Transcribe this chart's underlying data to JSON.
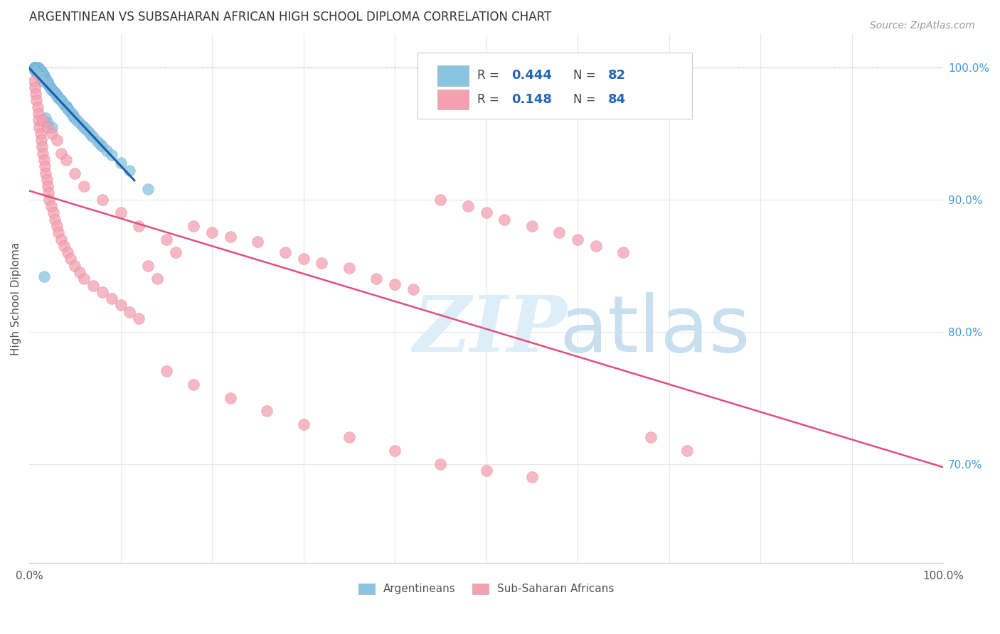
{
  "title": "ARGENTINEAN VS SUBSAHARAN AFRICAN HIGH SCHOOL DIPLOMA CORRELATION CHART",
  "source": "Source: ZipAtlas.com",
  "ylabel": "High School Diploma",
  "legend_label_blue": "Argentineans",
  "legend_label_pink": "Sub-Saharan Africans",
  "xlim": [
    0,
    1.0
  ],
  "ylim": [
    0.625,
    1.025
  ],
  "blue_color": "#89c4e1",
  "blue_edge_color": "#5a9fd4",
  "pink_color": "#f4a0b0",
  "pink_edge_color": "#e06080",
  "blue_line_color": "#1a5fa8",
  "pink_line_color": "#e0507a",
  "title_color": "#333333",
  "source_color": "#999999",
  "right_tick_color": "#4499dd",
  "grid_color": "#e8e8e8",
  "legend_r_blue": "0.444",
  "legend_n_blue": "82",
  "legend_r_pink": "0.148",
  "legend_n_pink": "84",
  "blue_x": [
    0.005,
    0.006,
    0.007,
    0.007,
    0.008,
    0.008,
    0.008,
    0.009,
    0.009,
    0.01,
    0.01,
    0.01,
    0.01,
    0.011,
    0.011,
    0.012,
    0.012,
    0.013,
    0.013,
    0.014,
    0.014,
    0.015,
    0.015,
    0.016,
    0.016,
    0.017,
    0.018,
    0.018,
    0.019,
    0.02,
    0.02,
    0.021,
    0.022,
    0.023,
    0.024,
    0.025,
    0.026,
    0.028,
    0.029,
    0.03,
    0.031,
    0.032,
    0.034,
    0.035,
    0.036,
    0.038,
    0.04,
    0.041,
    0.042,
    0.043,
    0.045,
    0.047,
    0.048,
    0.05,
    0.052,
    0.055,
    0.058,
    0.06,
    0.062,
    0.065,
    0.068,
    0.07,
    0.075,
    0.078,
    0.08,
    0.085,
    0.09,
    0.1,
    0.11,
    0.13,
    0.005,
    0.006,
    0.007,
    0.008,
    0.009,
    0.01,
    0.012,
    0.014,
    0.016,
    0.018,
    0.02,
    0.025
  ],
  "blue_y": [
    1.0,
    1.0,
    1.0,
    0.999,
    1.0,
    0.999,
    0.998,
    1.0,
    0.999,
    1.0,
    0.999,
    0.998,
    0.997,
    0.999,
    0.997,
    0.998,
    0.996,
    0.997,
    0.995,
    0.996,
    0.994,
    0.995,
    0.993,
    0.994,
    0.992,
    0.993,
    0.991,
    0.99,
    0.99,
    0.989,
    0.988,
    0.987,
    0.986,
    0.985,
    0.984,
    0.983,
    0.982,
    0.981,
    0.98,
    0.979,
    0.978,
    0.977,
    0.976,
    0.975,
    0.974,
    0.972,
    0.971,
    0.97,
    0.969,
    0.968,
    0.966,
    0.965,
    0.963,
    0.962,
    0.96,
    0.958,
    0.956,
    0.955,
    0.953,
    0.951,
    0.949,
    0.947,
    0.944,
    0.942,
    0.94,
    0.937,
    0.934,
    0.928,
    0.922,
    0.908,
    0.999,
    0.998,
    0.997,
    0.996,
    0.995,
    0.994,
    0.993,
    0.99,
    0.842,
    0.962,
    0.958,
    0.955
  ],
  "pink_x": [
    0.005,
    0.006,
    0.007,
    0.008,
    0.009,
    0.01,
    0.01,
    0.011,
    0.012,
    0.013,
    0.014,
    0.015,
    0.016,
    0.017,
    0.018,
    0.019,
    0.02,
    0.021,
    0.022,
    0.024,
    0.026,
    0.028,
    0.03,
    0.032,
    0.035,
    0.038,
    0.042,
    0.045,
    0.05,
    0.055,
    0.06,
    0.07,
    0.08,
    0.09,
    0.1,
    0.11,
    0.12,
    0.13,
    0.14,
    0.15,
    0.16,
    0.18,
    0.2,
    0.22,
    0.25,
    0.28,
    0.3,
    0.32,
    0.35,
    0.38,
    0.4,
    0.42,
    0.45,
    0.48,
    0.5,
    0.52,
    0.55,
    0.58,
    0.6,
    0.62,
    0.65,
    0.68,
    0.72,
    0.015,
    0.02,
    0.025,
    0.03,
    0.035,
    0.04,
    0.05,
    0.06,
    0.08,
    0.1,
    0.12,
    0.15,
    0.18,
    0.22,
    0.26,
    0.3,
    0.35,
    0.4,
    0.45,
    0.5,
    0.55
  ],
  "pink_y": [
    0.99,
    0.985,
    0.98,
    0.975,
    0.97,
    0.965,
    0.96,
    0.955,
    0.95,
    0.945,
    0.94,
    0.935,
    0.93,
    0.925,
    0.92,
    0.915,
    0.91,
    0.905,
    0.9,
    0.895,
    0.89,
    0.885,
    0.88,
    0.875,
    0.87,
    0.865,
    0.86,
    0.855,
    0.85,
    0.845,
    0.84,
    0.835,
    0.83,
    0.825,
    0.82,
    0.815,
    0.81,
    0.85,
    0.84,
    0.87,
    0.86,
    0.88,
    0.875,
    0.872,
    0.868,
    0.86,
    0.855,
    0.852,
    0.848,
    0.84,
    0.836,
    0.832,
    0.9,
    0.895,
    0.89,
    0.885,
    0.88,
    0.875,
    0.87,
    0.865,
    0.86,
    0.72,
    0.71,
    0.96,
    0.955,
    0.95,
    0.945,
    0.935,
    0.93,
    0.92,
    0.91,
    0.9,
    0.89,
    0.88,
    0.77,
    0.76,
    0.75,
    0.74,
    0.73,
    0.72,
    0.71,
    0.7,
    0.695,
    0.69
  ]
}
